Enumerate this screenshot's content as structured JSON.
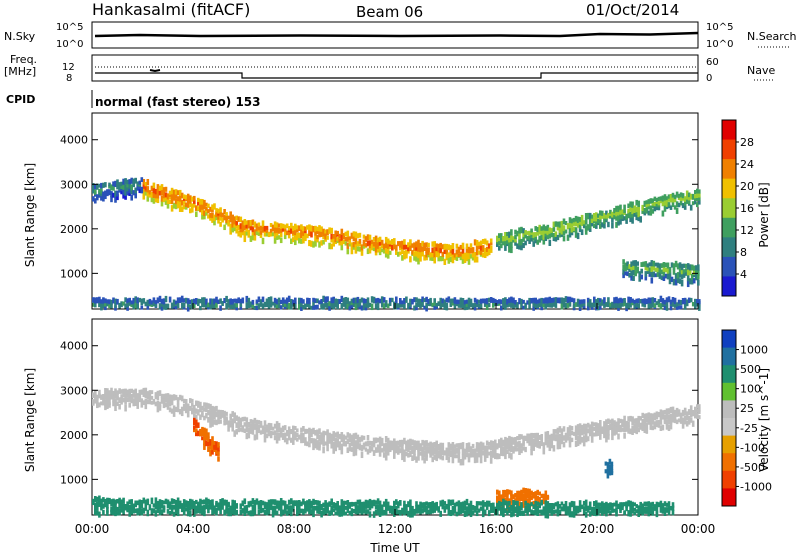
{
  "header": {
    "title": "Hankasalmi (fitACF)",
    "beam": "Beam 06",
    "date": "01/Oct/2014"
  },
  "status_panel": {
    "nsky_label": "N.Sky",
    "nsky_ticks": [
      "10^5",
      "10^0"
    ],
    "nsearch_label": "N.Search",
    "nsearch_ticks": [
      "10^5",
      "10^0"
    ],
    "freq_label_1": "Freq.",
    "freq_label_2": "[MHz]",
    "freq_ticks": [
      "12",
      "8"
    ],
    "nave_label": "Nave",
    "nave_ticks": [
      "60",
      "0"
    ],
    "cpid_label": "CPID",
    "cpid_text": "normal (fast stereo) 153"
  },
  "colors": {
    "power_scale": [
      "#1a1ad0",
      "#2a52b8",
      "#2f7f7f",
      "#3f9f5f",
      "#9acd32",
      "#f0c000",
      "#f08000",
      "#f04000",
      "#e00000"
    ],
    "velocity_scale": [
      "#1040c0",
      "#2070a0",
      "#1f8f6f",
      "#60c030",
      "#bdbdbd",
      "#c8c8c8",
      "#e6a000",
      "#f07000",
      "#f04000",
      "#e00000"
    ],
    "axes": "#000000"
  },
  "chart_data": [
    {
      "type": "heatmap",
      "name": "power-panel",
      "xlabel": "",
      "ylabel": "Slant Range [km]",
      "ylim": [
        200,
        4600
      ],
      "yticks": [
        "4000",
        "3000",
        "2000",
        "1000"
      ],
      "colorbar_label": "Power [dB]",
      "colorbar_ticks": [
        "28",
        "24",
        "20",
        "16",
        "12",
        "8",
        "4"
      ],
      "bands": [
        {
          "x": [
            2.0,
            4.2,
            6.0,
            9.0,
            12.0,
            14.5,
            15.8
          ],
          "y": [
            3000,
            2600,
            2100,
            1950,
            1650,
            1550,
            1700
          ],
          "value": 22
        },
        {
          "x": [
            16.0,
            18.0,
            20.0,
            22.0,
            24.0
          ],
          "y": [
            1800,
            2000,
            2300,
            2600,
            2800
          ],
          "value": 14
        },
        {
          "x": [
            0.0,
            1.0,
            2.0
          ],
          "y": [
            2900,
            3000,
            3050
          ],
          "value": 9
        },
        {
          "x": [
            21.0,
            22.5,
            24.0
          ],
          "y": [
            1200,
            1150,
            1100
          ],
          "value": 12
        },
        {
          "x": [
            0.0,
            12.0,
            24.0
          ],
          "y": [
            350,
            350,
            350
          ],
          "value": 8
        }
      ]
    },
    {
      "type": "heatmap",
      "name": "velocity-panel",
      "xlabel": "Time UT",
      "ylabel": "Slant Range [km]",
      "ylim": [
        200,
        4600
      ],
      "yticks": [
        "4000",
        "3000",
        "2000",
        "1000"
      ],
      "xticks": [
        "00:00",
        "04:00",
        "08:00",
        "12:00",
        "16:00",
        "20:00",
        "00:00"
      ],
      "colorbar_label": "Velocity [m s^-1]",
      "colorbar_ticks": [
        "1000",
        "500",
        "100",
        "25",
        "-25",
        "-100",
        "-500",
        "-1000"
      ],
      "bands": [
        {
          "x": [
            0.0,
            2.0,
            4.0,
            6.0,
            9.0,
            12.0,
            15.0,
            18.0,
            21.0,
            24.0
          ],
          "y": [
            2900,
            2950,
            2700,
            2300,
            2000,
            1800,
            1700,
            2000,
            2300,
            2600
          ],
          "value": 0
        },
        {
          "x": [
            4.0,
            4.5,
            5.0
          ],
          "y": [
            2300,
            2000,
            1700
          ],
          "value": -300
        },
        {
          "x": [
            16.0,
            17.0,
            18.0
          ],
          "y": [
            650,
            700,
            600
          ],
          "value": -200
        },
        {
          "x": [
            20.3,
            20.6
          ],
          "y": [
            1400,
            1300
          ],
          "value": 600
        },
        {
          "x": [
            0.0,
            1.5,
            23.0
          ],
          "y": [
            500,
            450,
            400
          ],
          "value": 80
        }
      ]
    }
  ]
}
